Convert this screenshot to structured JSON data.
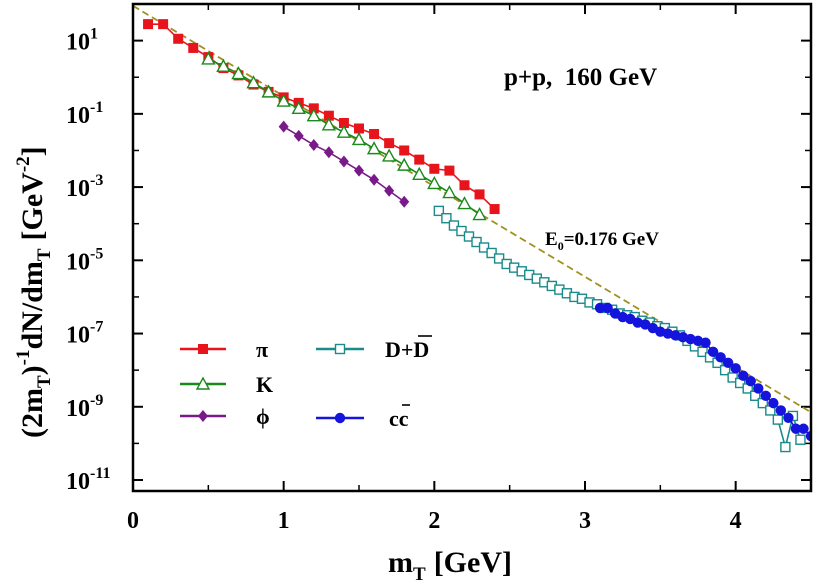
{
  "chart_data": {
    "type": "scatter",
    "xlabel": "m",
    "xlabel_sub": "T",
    "xlabel_unit": "[GeV]",
    "ylabel_parts": [
      "(2m",
      "T",
      ")",
      "-1",
      "dN/dm",
      "T",
      "[GeV",
      "-2",
      "]"
    ],
    "xlim": [
      0,
      4.5
    ],
    "ylim_log10": [
      -11.3,
      2
    ],
    "x_ticks": [
      0,
      1,
      2,
      3,
      4
    ],
    "x_tick_labels": [
      "0",
      "1",
      "2",
      "3",
      "4"
    ],
    "y_ticks": [
      {
        "exp": 1,
        "base": "10",
        "sup": "1"
      },
      {
        "exp": -1,
        "base": "10",
        "sup": "-1"
      },
      {
        "exp": -3,
        "base": "10",
        "sup": "-3"
      },
      {
        "exp": -5,
        "base": "10",
        "sup": "-5"
      },
      {
        "exp": -7,
        "base": "10",
        "sup": "-7"
      },
      {
        "exp": -9,
        "base": "10",
        "sup": "-9"
      },
      {
        "exp": -11,
        "base": "10",
        "sup": "-11"
      }
    ],
    "title": "p+p,  160 GeV",
    "annotation": {
      "pre": "E",
      "sub": "0",
      "post": "=0.176 GeV"
    },
    "fit_line": {
      "name": "E0=0.176 GeV",
      "color": "#a09020",
      "x": [
        0.0,
        4.5
      ],
      "log10y": [
        1.95,
        -9.15
      ]
    },
    "series": [
      {
        "name": "π",
        "color": "#e8141c",
        "marker": "square-filled",
        "x": [
          0.1,
          0.2,
          0.3,
          0.4,
          0.5,
          0.6,
          0.7,
          0.8,
          0.9,
          1.0,
          1.1,
          1.2,
          1.3,
          1.4,
          1.5,
          1.6,
          1.7,
          1.8,
          1.9,
          2.0,
          2.1,
          2.2,
          2.3,
          2.4
        ],
        "log10y": [
          1.45,
          1.45,
          1.05,
          0.8,
          0.55,
          0.25,
          0.05,
          -0.2,
          -0.4,
          -0.55,
          -0.7,
          -0.85,
          -1.05,
          -1.25,
          -1.4,
          -1.55,
          -1.8,
          -2.0,
          -2.25,
          -2.5,
          -2.55,
          -2.95,
          -3.2,
          -3.6
        ]
      },
      {
        "name": "K",
        "color": "#1a8a1a",
        "marker": "triangle-open",
        "x": [
          0.5,
          0.6,
          0.7,
          0.8,
          0.9,
          1.0,
          1.1,
          1.2,
          1.3,
          1.4,
          1.5,
          1.6,
          1.7,
          1.8,
          1.9,
          2.0,
          2.1,
          2.2,
          2.3
        ],
        "log10y": [
          0.5,
          0.3,
          0.1,
          -0.15,
          -0.4,
          -0.65,
          -0.85,
          -1.05,
          -1.3,
          -1.5,
          -1.7,
          -1.95,
          -2.15,
          -2.4,
          -2.65,
          -2.9,
          -3.15,
          -3.45,
          -3.75
        ]
      },
      {
        "name": "ϕ",
        "color": "#7a1a8a",
        "marker": "diamond-filled",
        "x": [
          1.0,
          1.1,
          1.2,
          1.3,
          1.4,
          1.5,
          1.6,
          1.7,
          1.8
        ],
        "log10y": [
          -1.35,
          -1.6,
          -1.85,
          -2.05,
          -2.3,
          -2.55,
          -2.8,
          -3.1,
          -3.4
        ]
      },
      {
        "name": "D+D̄",
        "color": "#1a8a8a",
        "marker": "square-open",
        "x": [
          2.03,
          2.08,
          2.13,
          2.18,
          2.23,
          2.28,
          2.33,
          2.38,
          2.43,
          2.48,
          2.53,
          2.58,
          2.63,
          2.68,
          2.73,
          2.78,
          2.83,
          2.88,
          2.93,
          2.98,
          3.03,
          3.08,
          3.13,
          3.18,
          3.23,
          3.28,
          3.33,
          3.38,
          3.43,
          3.48,
          3.53,
          3.58,
          3.63,
          3.68,
          3.73,
          3.78,
          3.83,
          3.88,
          3.93,
          3.98,
          4.03,
          4.08,
          4.13,
          4.18,
          4.23,
          4.28,
          4.33,
          4.38,
          4.43
        ],
        "log10y": [
          -3.65,
          -3.85,
          -4.05,
          -4.2,
          -4.35,
          -4.5,
          -4.65,
          -4.8,
          -4.95,
          -5.1,
          -5.2,
          -5.3,
          -5.4,
          -5.5,
          -5.6,
          -5.7,
          -5.8,
          -5.9,
          -6.0,
          -6.05,
          -6.15,
          -6.2,
          -6.3,
          -6.35,
          -6.45,
          -6.5,
          -6.55,
          -6.65,
          -6.7,
          -6.8,
          -6.85,
          -6.95,
          -7.05,
          -7.2,
          -7.35,
          -7.5,
          -7.65,
          -7.8,
          -8.0,
          -8.2,
          -8.35,
          -8.5,
          -8.7,
          -8.9,
          -9.1,
          -9.35,
          -10.1,
          -9.25,
          -9.9
        ]
      },
      {
        "name": "cc̄",
        "color": "#1414dc",
        "marker": "circle-filled",
        "x": [
          3.1,
          3.15,
          3.2,
          3.25,
          3.3,
          3.35,
          3.4,
          3.45,
          3.5,
          3.55,
          3.6,
          3.65,
          3.7,
          3.75,
          3.8,
          3.85,
          3.9,
          3.95,
          4.0,
          4.05,
          4.1,
          4.15,
          4.2,
          4.25,
          4.3,
          4.35,
          4.4,
          4.45,
          4.5
        ],
        "log10y": [
          -6.3,
          -6.3,
          -6.45,
          -6.55,
          -6.6,
          -6.7,
          -6.75,
          -6.85,
          -6.95,
          -7.0,
          -7.05,
          -7.1,
          -7.15,
          -7.2,
          -7.25,
          -7.5,
          -7.65,
          -7.8,
          -7.95,
          -8.15,
          -8.3,
          -8.5,
          -8.7,
          -8.9,
          -9.1,
          -9.3,
          -9.6,
          -9.6,
          -9.8
        ]
      }
    ],
    "legend": [
      {
        "label": "π",
        "series": 0
      },
      {
        "label": "D+D",
        "overline": "D",
        "series": 3
      },
      {
        "label": "K",
        "series": 1
      },
      {
        "label": "ϕ",
        "series": 2
      },
      {
        "label": "cc",
        "overline": "c",
        "series": 4
      }
    ]
  }
}
